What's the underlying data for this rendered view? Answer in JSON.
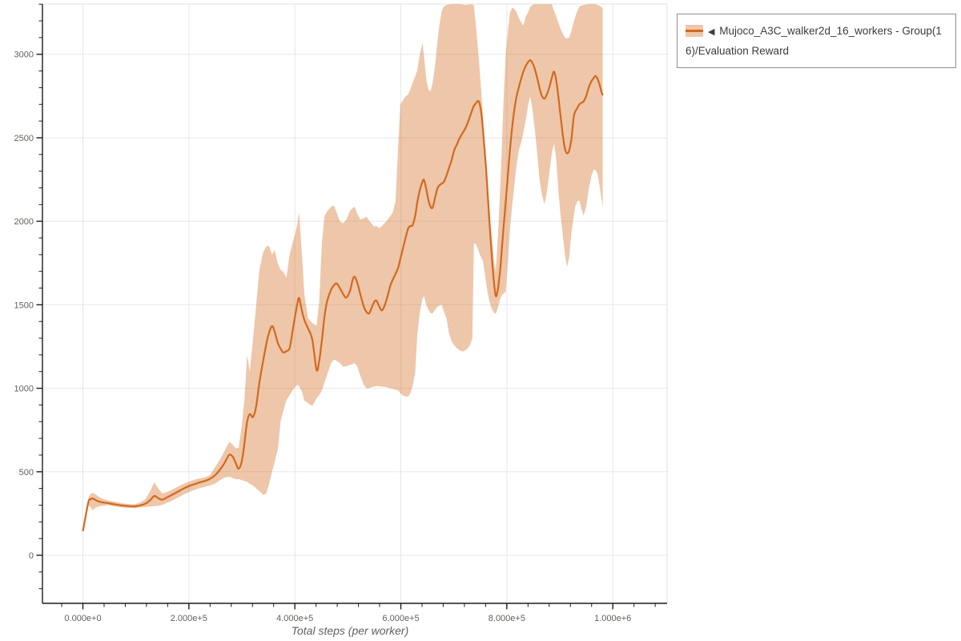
{
  "page": {
    "background": "#ffffff"
  },
  "legend": {
    "toggle_icon": "◀",
    "label": "Mujoco_A3C_walker2d_16_workers - Group(16)/Evaluation Reward"
  },
  "chart_data": {
    "type": "line",
    "title": "",
    "xlabel": "Total steps (per worker)",
    "ylabel": "",
    "series_name": "Mujoco_A3C_walker2d_16_workers - Group(16)/Evaluation Reward",
    "colors": {
      "line": "#d2691e",
      "band": "rgba(210,105,30,0.38)",
      "grid": "#e7e7e7",
      "axis": "#1c1c1c",
      "border": "#e0e0e0",
      "tick_text": "#635F5D"
    },
    "x_axis": {
      "ticks": [
        {
          "value": 0,
          "label": "0.000e+0"
        },
        {
          "value": 200000,
          "label": "2.000e+5"
        },
        {
          "value": 400000,
          "label": "4.000e+5"
        },
        {
          "value": 600000,
          "label": "6.000e+5"
        },
        {
          "value": 800000,
          "label": "8.000e+5"
        },
        {
          "value": 1000000,
          "label": "1.000e+6"
        }
      ],
      "minor_tick_step": 40000,
      "domain": [
        -76000,
        1102000
      ]
    },
    "y_axis": {
      "ticks": [
        0,
        500,
        1000,
        1500,
        2000,
        2500,
        3000
      ],
      "minor_tick_step": 100,
      "domain": [
        -288,
        3301
      ]
    },
    "grid": true,
    "legend_position": "top-right",
    "points_format": [
      "step",
      "band_low",
      "mean",
      "band_high"
    ],
    "points": [
      [
        0,
        138,
        144,
        152
      ],
      [
        6000,
        232,
        250,
        268
      ],
      [
        11000,
        298,
        326,
        352
      ],
      [
        15000,
        288,
        336,
        368
      ],
      [
        18000,
        269,
        341,
        374
      ],
      [
        24000,
        285,
        330,
        364
      ],
      [
        30000,
        292,
        322,
        350
      ],
      [
        38000,
        297,
        316,
        338
      ],
      [
        48000,
        300,
        312,
        327
      ],
      [
        60000,
        292,
        305,
        320
      ],
      [
        75000,
        286,
        298,
        311
      ],
      [
        88000,
        283,
        294,
        306
      ],
      [
        98000,
        282,
        293,
        305
      ],
      [
        108000,
        286,
        299,
        315
      ],
      [
        118000,
        289,
        309,
        336
      ],
      [
        127000,
        291,
        330,
        385
      ],
      [
        135000,
        293,
        355,
        437
      ],
      [
        142000,
        297,
        342,
        400
      ],
      [
        150000,
        302,
        333,
        370
      ],
      [
        160000,
        315,
        349,
        380
      ],
      [
        170000,
        330,
        365,
        396
      ],
      [
        180000,
        347,
        382,
        412
      ],
      [
        190000,
        363,
        399,
        427
      ],
      [
        200000,
        378,
        414,
        441
      ],
      [
        210000,
        391,
        425,
        452
      ],
      [
        220000,
        402,
        436,
        460
      ],
      [
        230000,
        410,
        445,
        467
      ],
      [
        240000,
        418,
        458,
        480
      ],
      [
        250000,
        430,
        481,
        530
      ],
      [
        258000,
        448,
        510,
        570
      ],
      [
        266000,
        463,
        546,
        615
      ],
      [
        272000,
        469,
        581,
        655
      ],
      [
        277000,
        470,
        603,
        680
      ],
      [
        283000,
        462,
        589,
        660
      ],
      [
        289000,
        455,
        549,
        640
      ],
      [
        294000,
        456,
        518,
        645
      ],
      [
        300000,
        450,
        565,
        780
      ],
      [
        305000,
        445,
        672,
        940
      ],
      [
        310000,
        440,
        800,
        1198
      ],
      [
        315000,
        428,
        845,
        1100
      ],
      [
        321000,
        418,
        828,
        1290
      ],
      [
        327000,
        400,
        893,
        1500
      ],
      [
        333000,
        385,
        1032,
        1705
      ],
      [
        340000,
        362,
        1160,
        1812
      ],
      [
        346000,
        368,
        1262,
        1848
      ],
      [
        351000,
        425,
        1330,
        1854
      ],
      [
        357000,
        500,
        1372,
        1800
      ],
      [
        362000,
        560,
        1338,
        1828
      ],
      [
        368000,
        635,
        1270,
        1745
      ],
      [
        373000,
        800,
        1238,
        1710
      ],
      [
        378000,
        860,
        1215,
        1698
      ],
      [
        384000,
        930,
        1222,
        1662
      ],
      [
        390000,
        958,
        1240,
        1800
      ],
      [
        395000,
        985,
        1330,
        1862
      ],
      [
        400000,
        1005,
        1425,
        1918
      ],
      [
        405000,
        1022,
        1510,
        1988
      ],
      [
        408000,
        1010,
        1540,
        2054
      ],
      [
        413000,
        982,
        1468,
        1820
      ],
      [
        418000,
        926,
        1408,
        1560
      ],
      [
        425000,
        910,
        1358,
        1420
      ],
      [
        433000,
        894,
        1290,
        1390
      ],
      [
        441000,
        940,
        1110,
        1374
      ],
      [
        446000,
        958,
        1165,
        1520
      ],
      [
        451000,
        985,
        1285,
        1870
      ],
      [
        456000,
        1035,
        1430,
        2030
      ],
      [
        461000,
        1080,
        1522,
        2060
      ],
      [
        468000,
        1150,
        1588,
        2086
      ],
      [
        474000,
        1172,
        1618,
        2094
      ],
      [
        479000,
        1165,
        1627,
        2050
      ],
      [
        485000,
        1150,
        1600,
        2000
      ],
      [
        491000,
        1130,
        1565,
        1988
      ],
      [
        497000,
        1132,
        1543,
        2010
      ],
      [
        504000,
        1140,
        1582,
        2062
      ],
      [
        509000,
        1146,
        1648,
        2080
      ],
      [
        513000,
        1150,
        1668,
        2086
      ],
      [
        518000,
        1128,
        1630,
        2042
      ],
      [
        524000,
        1072,
        1558,
        2010
      ],
      [
        530000,
        1020,
        1490,
        2018
      ],
      [
        535000,
        1000,
        1458,
        2028
      ],
      [
        540000,
        1002,
        1448,
        2005
      ],
      [
        545000,
        1006,
        1482,
        1985
      ],
      [
        550000,
        1010,
        1518,
        1968
      ],
      [
        554000,
        1014,
        1525,
        1972
      ],
      [
        559000,
        1012,
        1492,
        1958
      ],
      [
        564000,
        1010,
        1466,
        1970
      ],
      [
        569000,
        1008,
        1492,
        1988
      ],
      [
        574000,
        1006,
        1540,
        2006
      ],
      [
        580000,
        1000,
        1612,
        2030
      ],
      [
        585000,
        997,
        1652,
        2055
      ],
      [
        590000,
        992,
        1685,
        2120
      ],
      [
        595000,
        988,
        1722,
        2450
      ],
      [
        599000,
        970,
        1775,
        2700
      ],
      [
        604000,
        956,
        1838,
        2725
      ],
      [
        609000,
        952,
        1902,
        2748
      ],
      [
        614000,
        950,
        1958,
        2760
      ],
      [
        618000,
        972,
        1972,
        2790
      ],
      [
        622000,
        1010,
        1976,
        2830
      ],
      [
        627000,
        1090,
        2032,
        2866
      ],
      [
        631000,
        1320,
        2112,
        2905
      ],
      [
        636000,
        1455,
        2188,
        3000
      ],
      [
        641000,
        1540,
        2238,
        3070
      ],
      [
        644000,
        1552,
        2246,
        2980
      ],
      [
        648000,
        1500,
        2192,
        2848
      ],
      [
        652000,
        1470,
        2128,
        2790
      ],
      [
        656000,
        1450,
        2088,
        2778
      ],
      [
        660000,
        1448,
        2082,
        2830
      ],
      [
        665000,
        1472,
        2146,
        2940
      ],
      [
        669000,
        1488,
        2196,
        3080
      ],
      [
        673000,
        1496,
        2216,
        3180
      ],
      [
        677000,
        1502,
        2226,
        3255
      ],
      [
        681000,
        1460,
        2235,
        3285
      ],
      [
        686000,
        1422,
        2272,
        3295
      ],
      [
        691000,
        1330,
        2320,
        3298
      ],
      [
        696000,
        1280,
        2368,
        3300
      ],
      [
        701000,
        1256,
        2428,
        3300
      ],
      [
        706000,
        1240,
        2462,
        3300
      ],
      [
        711000,
        1228,
        2498,
        3300
      ],
      [
        716000,
        1220,
        2526,
        3298
      ],
      [
        721000,
        1226,
        2552,
        3295
      ],
      [
        726000,
        1238,
        2588,
        3296
      ],
      [
        731000,
        1262,
        2632,
        3298
      ],
      [
        735000,
        1300,
        2668,
        3300
      ],
      [
        738000,
        1870,
        2692,
        3290
      ],
      [
        742000,
        1862,
        2708,
        3160
      ],
      [
        746000,
        1830,
        2721,
        3020
      ],
      [
        749000,
        1800,
        2700,
        2900
      ],
      [
        752000,
        1782,
        2645,
        2770
      ],
      [
        755000,
        1760,
        2548,
        2620
      ],
      [
        758000,
        1695,
        2430,
        2480
      ],
      [
        761000,
        1625,
        2308,
        2360
      ],
      [
        764000,
        1570,
        2160,
        2230
      ],
      [
        767000,
        1525,
        2010,
        2090
      ],
      [
        770000,
        1490,
        1868,
        1960
      ],
      [
        773000,
        1466,
        1734,
        1850
      ],
      [
        776000,
        1452,
        1626,
        1760
      ],
      [
        779000,
        1446,
        1553,
        1700
      ],
      [
        782000,
        1470,
        1572,
        1840
      ],
      [
        785000,
        1505,
        1638,
        2020
      ],
      [
        788000,
        1540,
        1726,
        2230
      ],
      [
        791000,
        1558,
        1848,
        2480
      ],
      [
        794000,
        1568,
        1968,
        2740
      ],
      [
        798000,
        1580,
        2120,
        3000
      ],
      [
        802000,
        1760,
        2276,
        3140
      ],
      [
        806000,
        1950,
        2430,
        3250
      ],
      [
        810000,
        2090,
        2560,
        3278
      ],
      [
        814000,
        2210,
        2662,
        3272
      ],
      [
        818000,
        2330,
        2742,
        3255
      ],
      [
        823000,
        2430,
        2806,
        3215
      ],
      [
        827000,
        2470,
        2852,
        3192
      ],
      [
        831000,
        2530,
        2894,
        3172
      ],
      [
        836000,
        2610,
        2932,
        3228
      ],
      [
        840000,
        2690,
        2952,
        3250
      ],
      [
        844000,
        2749,
        2965,
        3282
      ],
      [
        848000,
        2680,
        2950,
        3295
      ],
      [
        852000,
        2570,
        2920,
        3300
      ],
      [
        857000,
        2420,
        2862,
        3300
      ],
      [
        862000,
        2240,
        2795,
        3300
      ],
      [
        866000,
        2160,
        2752,
        3300
      ],
      [
        871000,
        2102,
        2734,
        3300
      ],
      [
        876000,
        2180,
        2762,
        3300
      ],
      [
        881000,
        2310,
        2812,
        3300
      ],
      [
        885000,
        2410,
        2860,
        3300
      ],
      [
        889000,
        2469,
        2896,
        3260
      ],
      [
        893000,
        2380,
        2848,
        3230
      ],
      [
        897000,
        2200,
        2755,
        3190
      ],
      [
        901000,
        2050,
        2642,
        3155
      ],
      [
        906000,
        1905,
        2508,
        3120
      ],
      [
        910000,
        1790,
        2432,
        3098
      ],
      [
        914000,
        1726,
        2406,
        3094
      ],
      [
        918000,
        1790,
        2428,
        3100
      ],
      [
        922000,
        1935,
        2495,
        3142
      ],
      [
        926000,
        2022,
        2618,
        3190
      ],
      [
        929000,
        2088,
        2656,
        3222
      ],
      [
        933000,
        2120,
        2678,
        3260
      ],
      [
        937000,
        2125,
        2700,
        3285
      ],
      [
        941000,
        2072,
        2710,
        3292
      ],
      [
        945000,
        2034,
        2718,
        3295
      ],
      [
        950000,
        2090,
        2752,
        3298
      ],
      [
        955000,
        2200,
        2805,
        3300
      ],
      [
        960000,
        2275,
        2840,
        3300
      ],
      [
        964000,
        2310,
        2858,
        3300
      ],
      [
        967000,
        2308,
        2870,
        3300
      ],
      [
        971000,
        2286,
        2855,
        3295
      ],
      [
        975000,
        2212,
        2818,
        3290
      ],
      [
        978000,
        2150,
        2782,
        3284
      ],
      [
        981000,
        2082,
        2754,
        3277
      ]
    ]
  }
}
